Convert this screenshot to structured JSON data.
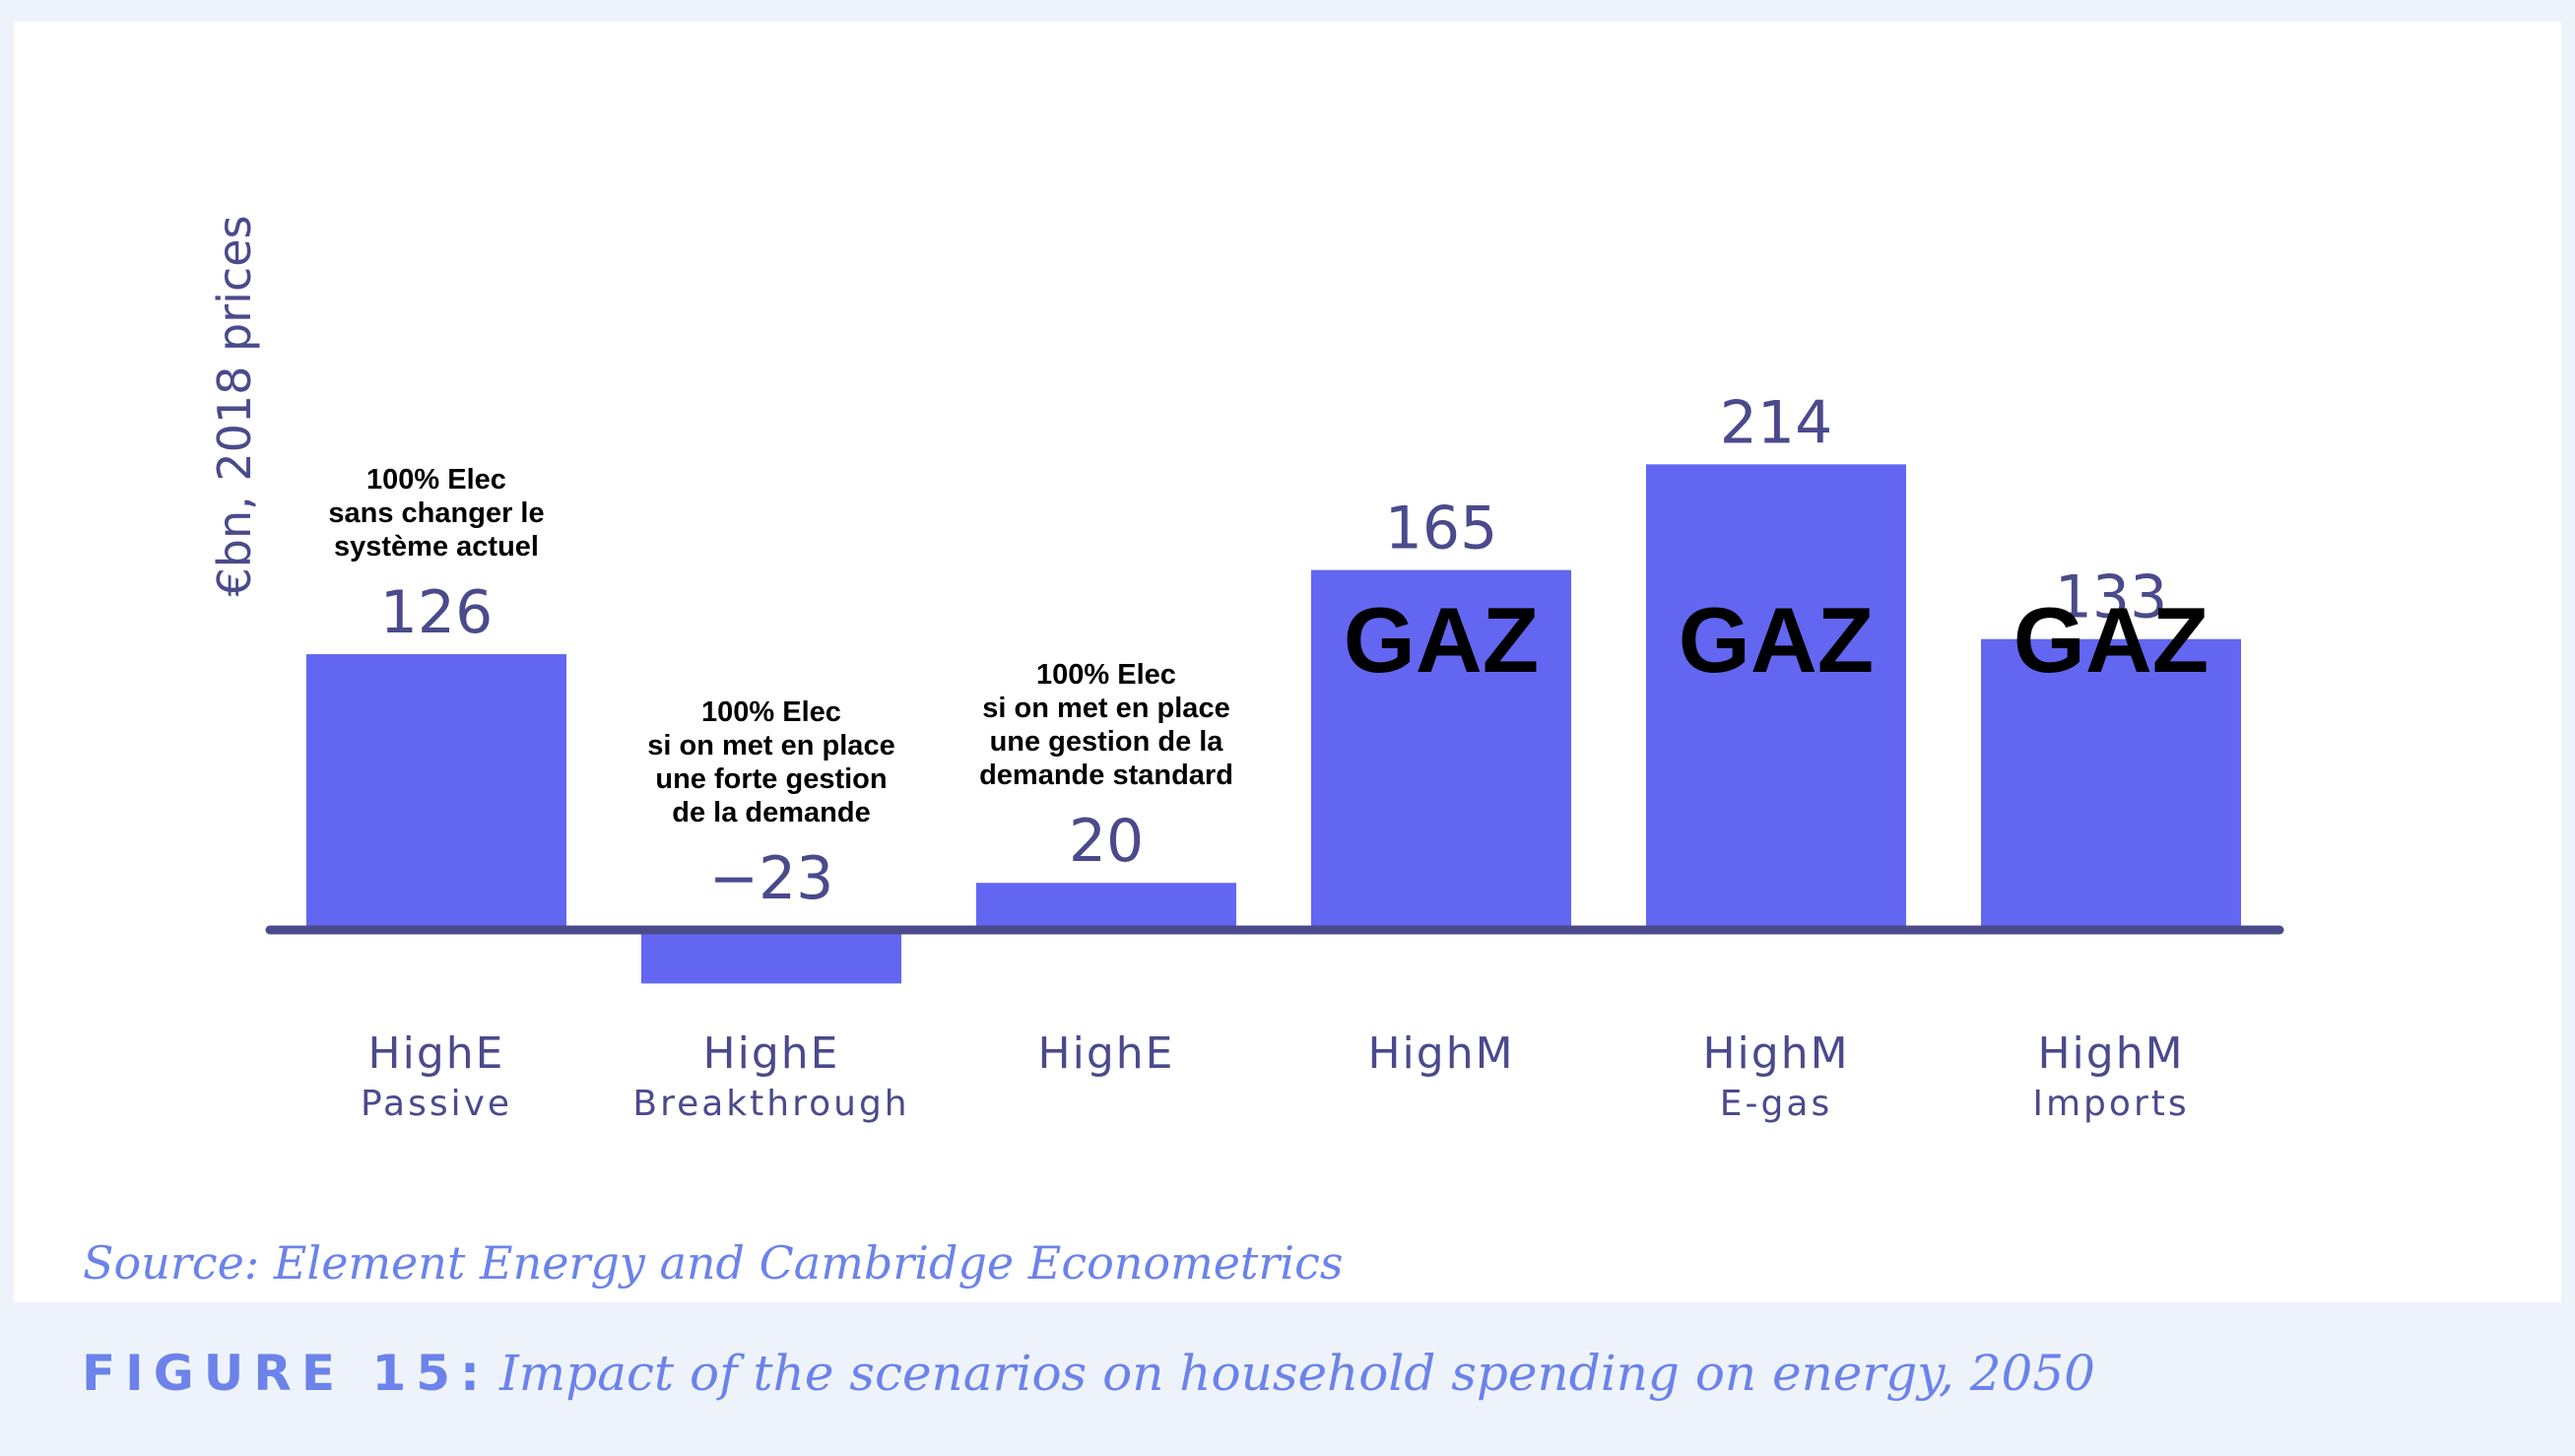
{
  "chart_data": {
    "type": "bar",
    "ylabel": "€bn, 2018 prices",
    "xlabel": "",
    "ylim": [
      -30,
      230
    ],
    "grid": false,
    "categories": [
      {
        "main": "HighE",
        "sub": "Passive"
      },
      {
        "main": "HighE",
        "sub": "Breakthrough"
      },
      {
        "main": "HighE",
        "sub": ""
      },
      {
        "main": "HighM",
        "sub": ""
      },
      {
        "main": "HighM",
        "sub": "E-gas"
      },
      {
        "main": "HighM",
        "sub": "Imports"
      }
    ],
    "values": [
      126,
      -23,
      20,
      165,
      214,
      133
    ],
    "value_labels": [
      "126",
      "−23",
      "20",
      "165",
      "214",
      "133"
    ],
    "bar_color": "#6366f1",
    "axis_color": "#4b4a8c",
    "annotations_above": [
      [
        "100% Elec",
        "sans changer le",
        "système actuel"
      ],
      [
        "100% Elec",
        "si on met en place",
        "une forte gestion",
        "de la demande"
      ],
      [
        "100% Elec",
        "si on met en place",
        "une gestion de la",
        "demande standard"
      ],
      [],
      [],
      []
    ],
    "annotations_inside": [
      "",
      "",
      "",
      "GAZ",
      "GAZ",
      "GAZ"
    ]
  },
  "source": "Source: Element Energy and Cambridge Econometrics",
  "caption": {
    "figure_label": "FIGURE 15:",
    "title": "Impact of the scenarios on household spending on energy, 2050"
  }
}
